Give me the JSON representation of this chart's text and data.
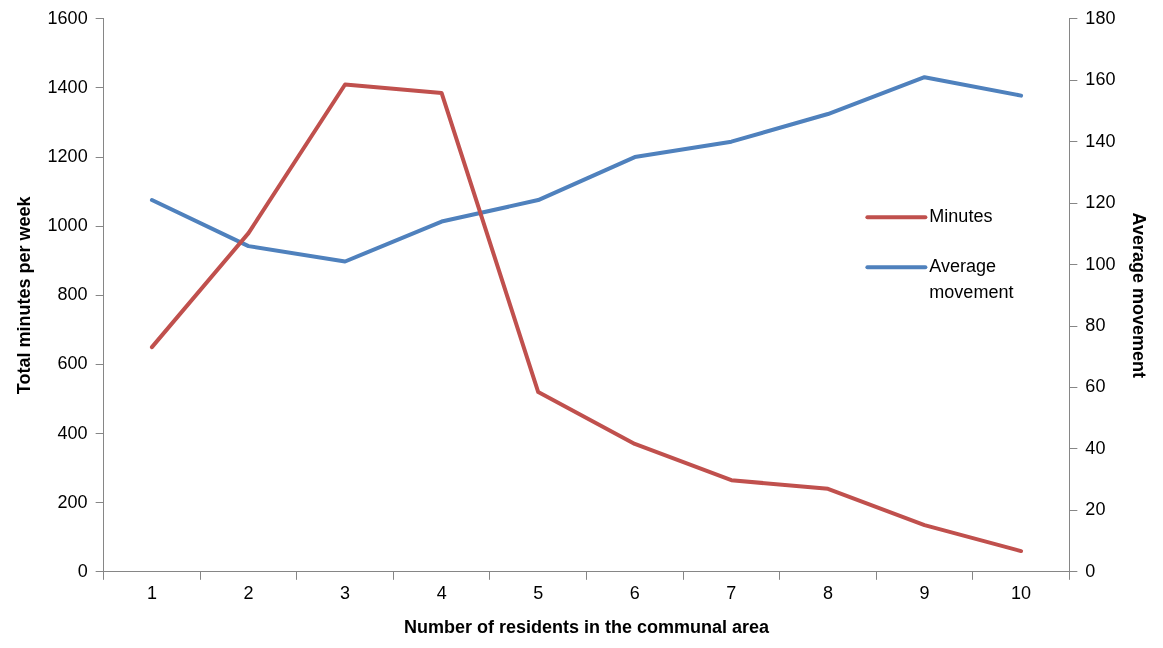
{
  "chart_data": {
    "type": "line",
    "xlabel": "Number of residents in the communal area",
    "ylabel": "Total minutes per week",
    "y2label": "Average movement",
    "categories": [
      "1",
      "2",
      "3",
      "4",
      "5",
      "6",
      "7",
      "8",
      "9",
      "10"
    ],
    "series": [
      {
        "name": "Minutes",
        "color": "#c0504d",
        "values": [
          650,
          980,
          1410,
          1385,
          520,
          370,
          265,
          240,
          135,
          60
        ]
      },
      {
        "name": "Average movement",
        "color": "#4f81bd",
        "axis": "y2",
        "values": [
          121,
          106,
          101,
          114,
          121,
          135,
          140,
          149,
          161,
          155
        ]
      }
    ],
    "ylim": [
      0,
      1600
    ],
    "yticks": [
      0,
      200,
      400,
      600,
      800,
      1000,
      1200,
      1400,
      1600
    ],
    "y2lim": [
      0,
      180
    ],
    "y2ticks": [
      0,
      20,
      40,
      60,
      80,
      100,
      120,
      140,
      160,
      180
    ],
    "grid": false,
    "legend": "right",
    "marker": "none",
    "line_style": "solid"
  }
}
